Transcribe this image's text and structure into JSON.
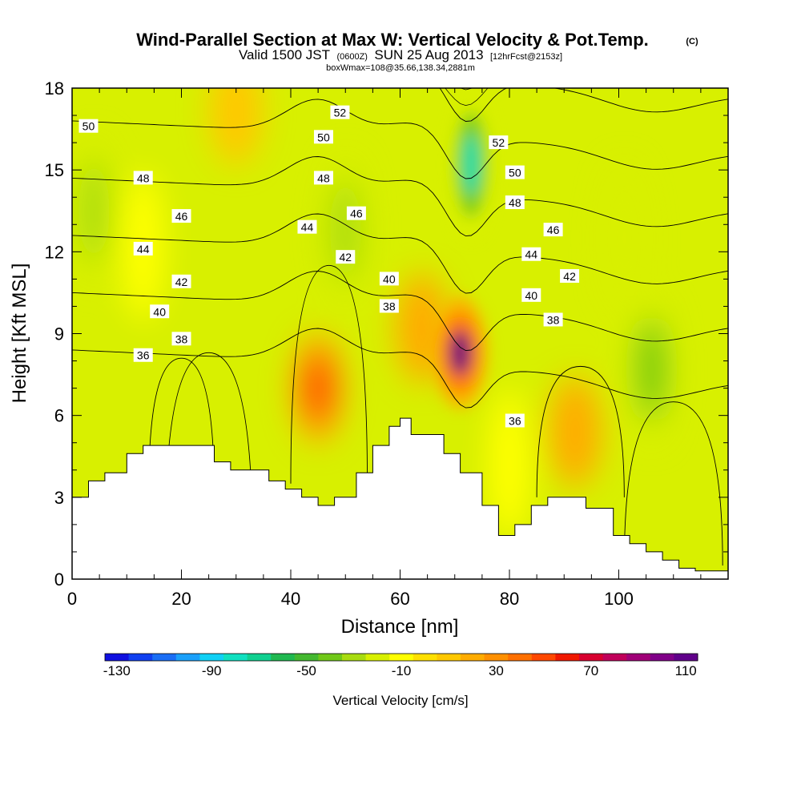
{
  "chart_data": {
    "type": "heatmap",
    "title": "Wind-Parallel Section at Max W: Vertical Velocity & Pot.Temp.",
    "title_mark": "(C)",
    "subtitle": {
      "valid": "Valid 1500 JST",
      "utc": "(0600Z)",
      "date": "SUN 25 Aug 2013",
      "forecast": "[12hrFcst@2153z]"
    },
    "info_line": "boxWmax=108@35.66,138.34,2881m",
    "xlabel": "Distance [nm]",
    "ylabel": "Height [Kft MSL]",
    "xlim": [
      0,
      120
    ],
    "ylim": [
      0,
      18
    ],
    "xticks": [
      0,
      20,
      40,
      60,
      80,
      100
    ],
    "yticks": [
      0,
      3,
      6,
      9,
      12,
      15,
      18
    ],
    "colorbar": {
      "label": "Vertical Velocity [cm/s]",
      "tick_labels": [
        "-130",
        "-90",
        "-50",
        "-10",
        "30",
        "70",
        "110"
      ],
      "colors": [
        "#1010e0",
        "#1040f0",
        "#1a6ef5",
        "#1aa0fa",
        "#10d0f5",
        "#10e0c0",
        "#10d090",
        "#20b850",
        "#44b830",
        "#70c818",
        "#a8dc10",
        "#d8f000",
        "#ffff00",
        "#ffe000",
        "#ffc800",
        "#ffac00",
        "#ff9000",
        "#ff7000",
        "#ff4800",
        "#f01800",
        "#d80030",
        "#c0005a",
        "#a00078",
        "#800088",
        "#60008a"
      ]
    },
    "terrain": {
      "x": [
        0,
        3,
        3,
        6,
        6,
        10,
        10,
        13,
        13,
        26,
        26,
        29,
        29,
        36,
        36,
        39,
        39,
        42,
        42,
        45,
        45,
        48,
        48,
        52,
        52,
        55,
        55,
        58,
        58,
        60,
        60,
        62,
        62,
        68,
        68,
        71,
        71,
        75,
        75,
        78,
        78,
        81,
        81,
        84,
        84,
        87,
        87,
        94,
        94,
        99,
        99,
        102,
        102,
        105,
        105,
        108,
        108,
        111,
        111,
        114,
        114,
        117,
        117,
        120
      ],
      "y": [
        3.0,
        3.0,
        3.6,
        3.6,
        3.9,
        3.9,
        4.6,
        4.6,
        4.9,
        4.9,
        4.3,
        4.3,
        4.0,
        4.0,
        3.6,
        3.6,
        3.3,
        3.3,
        3.0,
        3.0,
        2.7,
        2.7,
        3.0,
        3.0,
        3.9,
        3.9,
        4.9,
        4.9,
        5.6,
        5.6,
        5.9,
        5.9,
        5.3,
        5.3,
        4.6,
        4.6,
        3.9,
        3.9,
        2.7,
        2.7,
        1.6,
        1.6,
        2.0,
        2.0,
        2.7,
        2.7,
        3.0,
        3.0,
        2.6,
        2.6,
        1.6,
        1.6,
        1.3,
        1.3,
        1.0,
        1.0,
        0.7,
        0.7,
        0.4,
        0.4,
        0.3,
        0.3,
        0.3,
        0.3
      ]
    },
    "theta_contours": {
      "levels": [
        36,
        38,
        40,
        42,
        44,
        46,
        48,
        50,
        52
      ],
      "labels": [
        {
          "text": "50",
          "x": 3,
          "y": 16.6
        },
        {
          "text": "48",
          "x": 13,
          "y": 14.7
        },
        {
          "text": "46",
          "x": 20,
          "y": 13.3
        },
        {
          "text": "44",
          "x": 13,
          "y": 12.1
        },
        {
          "text": "42",
          "x": 20,
          "y": 10.9
        },
        {
          "text": "40",
          "x": 16,
          "y": 9.8
        },
        {
          "text": "38",
          "x": 20,
          "y": 8.8
        },
        {
          "text": "36",
          "x": 13,
          "y": 8.2
        },
        {
          "text": "52",
          "x": 49,
          "y": 17.1
        },
        {
          "text": "50",
          "x": 46,
          "y": 16.2
        },
        {
          "text": "48",
          "x": 46,
          "y": 14.7
        },
        {
          "text": "46",
          "x": 52,
          "y": 13.4
        },
        {
          "text": "44",
          "x": 43,
          "y": 12.9
        },
        {
          "text": "42",
          "x": 50,
          "y": 11.8
        },
        {
          "text": "40",
          "x": 58,
          "y": 11.0
        },
        {
          "text": "38",
          "x": 58,
          "y": 10.0
        },
        {
          "text": "52",
          "x": 78,
          "y": 16.0
        },
        {
          "text": "50",
          "x": 81,
          "y": 14.9
        },
        {
          "text": "48",
          "x": 81,
          "y": 13.8
        },
        {
          "text": "46",
          "x": 88,
          "y": 12.8
        },
        {
          "text": "44",
          "x": 84,
          "y": 11.9
        },
        {
          "text": "42",
          "x": 91,
          "y": 11.1
        },
        {
          "text": "40",
          "x": 84,
          "y": 10.4
        },
        {
          "text": "38",
          "x": 88,
          "y": 9.5
        },
        {
          "text": "36",
          "x": 81,
          "y": 5.8
        }
      ]
    },
    "velocity_features": [
      {
        "kind": "updraft",
        "x": 45,
        "y": 7.0,
        "peak": 50
      },
      {
        "kind": "updraft",
        "x": 71,
        "y": 8.3,
        "peak": 108
      },
      {
        "kind": "updraft",
        "x": 64,
        "y": 9.2,
        "peak": 20
      },
      {
        "kind": "updraft",
        "x": 92,
        "y": 5.4,
        "peak": 20
      },
      {
        "kind": "updraft",
        "x": 30,
        "y": 17.2,
        "peak": 10
      },
      {
        "kind": "downdraft",
        "x": 73,
        "y": 15.2,
        "peak": -80
      },
      {
        "kind": "downdraft",
        "x": 106,
        "y": 7.7,
        "peak": -40
      },
      {
        "kind": "downdraft",
        "x": 4,
        "y": 13.5,
        "peak": -30
      },
      {
        "kind": "downdraft",
        "x": 50,
        "y": 12.8,
        "peak": -30
      },
      {
        "kind": "downdraft",
        "x": 101,
        "y": 12.5,
        "peak": -20
      },
      {
        "kind": "downdraft",
        "x": 13,
        "y": 12.2,
        "peak": -15
      },
      {
        "kind": "downdraft",
        "x": 80,
        "y": 4.2,
        "peak": -15
      }
    ]
  }
}
